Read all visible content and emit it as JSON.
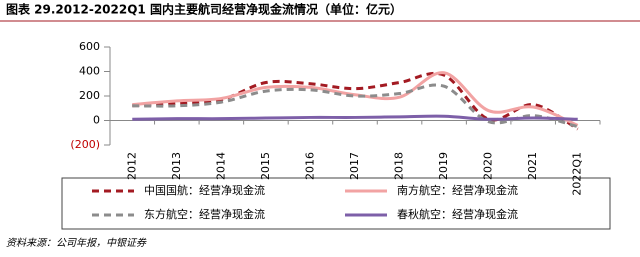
{
  "chart_data": {
    "type": "line",
    "title": "图表 29.2012-2022Q1 国内主要航司经营净现金流情况（单位：亿元）",
    "source": "资料来源：公司年报，中银证券",
    "categories": [
      "2012",
      "2013",
      "2014",
      "2015",
      "2016",
      "2017",
      "2018",
      "2019",
      "2020",
      "2021",
      "2022Q1"
    ],
    "series": [
      {
        "name": "中国国航：经营净现金流",
        "color": "#a31a22",
        "dash": true,
        "values": [
          120,
          140,
          170,
          310,
          300,
          260,
          310,
          370,
          10,
          130,
          -70
        ]
      },
      {
        "name": "南方航空：经营净现金流",
        "color": "#f2a3a3",
        "dash": false,
        "values": [
          130,
          160,
          180,
          270,
          270,
          210,
          190,
          390,
          80,
          110,
          -40
        ]
      },
      {
        "name": "东方航空：经营净现金流",
        "color": "#8c8c8c",
        "dash": true,
        "values": [
          120,
          120,
          150,
          240,
          250,
          200,
          220,
          280,
          -10,
          40,
          -50
        ]
      },
      {
        "name": "春秋航空：经营净现金流",
        "color": "#7d5fa8",
        "dash": false,
        "values": [
          10,
          15,
          15,
          20,
          25,
          25,
          30,
          35,
          10,
          20,
          10
        ]
      }
    ],
    "ylim": [
      -200,
      600
    ],
    "yticks": [
      {
        "value": -200,
        "label": "(200)"
      },
      0,
      200,
      400,
      600
    ]
  }
}
